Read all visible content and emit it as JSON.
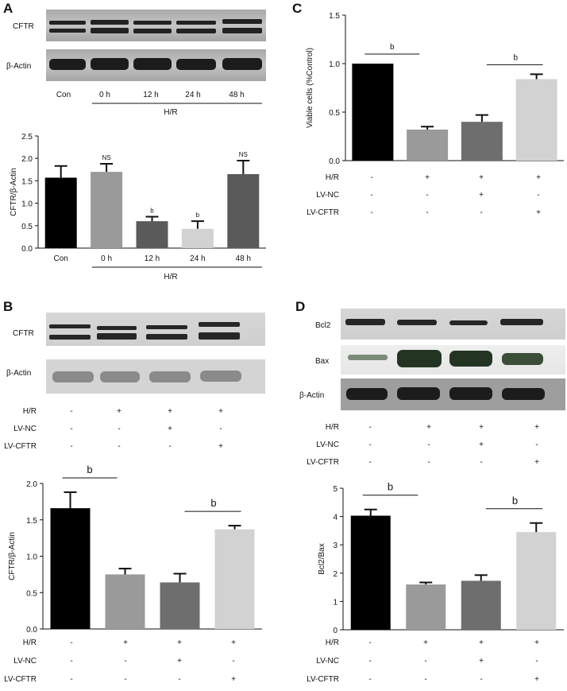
{
  "colors": {
    "black": "#000000",
    "grey1": "#9a9a9a",
    "grey2": "#6e6e6e",
    "grey3": "#d2d2d2",
    "grey4": "#5a5a5a",
    "error": "#111111"
  },
  "panels": {
    "A": {
      "label": "A",
      "blots": [
        "CFTR",
        "β-Actin"
      ],
      "lanes": [
        "Con",
        "0 h",
        "12 h",
        "24 h",
        "48 h"
      ],
      "group": "H/R"
    },
    "B": {
      "label": "B",
      "blots": [
        "CFTR",
        "β-Actin"
      ],
      "conditions": [
        {
          "name": "H/R",
          "values": [
            "-",
            "+",
            "+",
            "+"
          ]
        },
        {
          "name": "LV-NC",
          "values": [
            "-",
            "-",
            "+",
            "-"
          ]
        },
        {
          "name": "LV-CFTR",
          "values": [
            "-",
            "-",
            "-",
            "+"
          ]
        }
      ]
    },
    "C": {
      "label": "C"
    },
    "D": {
      "label": "D",
      "blots": [
        "Bcl2",
        "Bax",
        "β-Actin"
      ],
      "conditions": [
        {
          "name": "H/R",
          "values": [
            "-",
            "+",
            "+",
            "+"
          ]
        },
        {
          "name": "LV-NC",
          "values": [
            "-",
            "-",
            "+",
            "-"
          ]
        },
        {
          "name": "LV-CFTR",
          "values": [
            "-",
            "-",
            "-",
            "+"
          ]
        }
      ]
    }
  },
  "chart_data": [
    {
      "id": "A",
      "type": "bar",
      "categories": [
        "Con",
        "0 h",
        "12 h",
        "24 h",
        "48 h"
      ],
      "values": [
        1.57,
        1.7,
        0.6,
        0.43,
        1.65
      ],
      "errors": [
        0.26,
        0.18,
        0.1,
        0.17,
        0.3
      ],
      "annotations": [
        "",
        "NS",
        "b",
        "b",
        "NS"
      ],
      "group_label": "H/R",
      "ylabel": "CFTR/β-Actin",
      "ylim": [
        0,
        2.5
      ],
      "yticks": [
        "0.0",
        "0.5",
        "1.0",
        "1.5",
        "2.0",
        "2.5"
      ]
    },
    {
      "id": "B",
      "type": "bar",
      "values": [
        1.66,
        0.75,
        0.64,
        1.37
      ],
      "errors": [
        0.22,
        0.08,
        0.12,
        0.05
      ],
      "ylabel": "CFTR/β-Actin",
      "ylim": [
        0,
        2.0
      ],
      "yticks": [
        "0.0",
        "0.5",
        "1.0",
        "1.5",
        "2.0"
      ],
      "significance": [
        "b",
        "b"
      ],
      "conditions": [
        {
          "name": "H/R",
          "values": [
            "-",
            "+",
            "+",
            "+"
          ]
        },
        {
          "name": "LV-NC",
          "values": [
            "-",
            "-",
            "+",
            "-"
          ]
        },
        {
          "name": "LV-CFTR",
          "values": [
            "-",
            "-",
            "-",
            "+"
          ]
        }
      ]
    },
    {
      "id": "C",
      "type": "bar",
      "values": [
        1.0,
        0.32,
        0.4,
        0.84
      ],
      "errors": [
        0.0,
        0.03,
        0.07,
        0.05
      ],
      "ylabel": "Viable cells (%Control)",
      "ylim": [
        0,
        1.5
      ],
      "yticks": [
        "0.0",
        "0.5",
        "1.0",
        "1.5"
      ],
      "significance": [
        "b",
        "b"
      ],
      "conditions": [
        {
          "name": "H/R",
          "values": [
            "-",
            "+",
            "+",
            "+"
          ]
        },
        {
          "name": "LV-NC",
          "values": [
            "-",
            "-",
            "+",
            "-"
          ]
        },
        {
          "name": "LV-CFTR",
          "values": [
            "-",
            "-",
            "-",
            "+"
          ]
        }
      ]
    },
    {
      "id": "D",
      "type": "bar",
      "values": [
        4.03,
        1.6,
        1.73,
        3.45
      ],
      "errors": [
        0.22,
        0.07,
        0.2,
        0.32
      ],
      "ylabel": "Bcl2/Bax",
      "ylim": [
        0,
        5
      ],
      "yticks": [
        "0",
        "1",
        "2",
        "3",
        "4",
        "5"
      ],
      "significance": [
        "b",
        "b"
      ],
      "conditions": [
        {
          "name": "H/R",
          "values": [
            "-",
            "+",
            "+",
            "+"
          ]
        },
        {
          "name": "LV-NC",
          "values": [
            "-",
            "-",
            "+",
            "-"
          ]
        },
        {
          "name": "LV-CFTR",
          "values": [
            "-",
            "-",
            "-",
            "+"
          ]
        }
      ]
    }
  ]
}
